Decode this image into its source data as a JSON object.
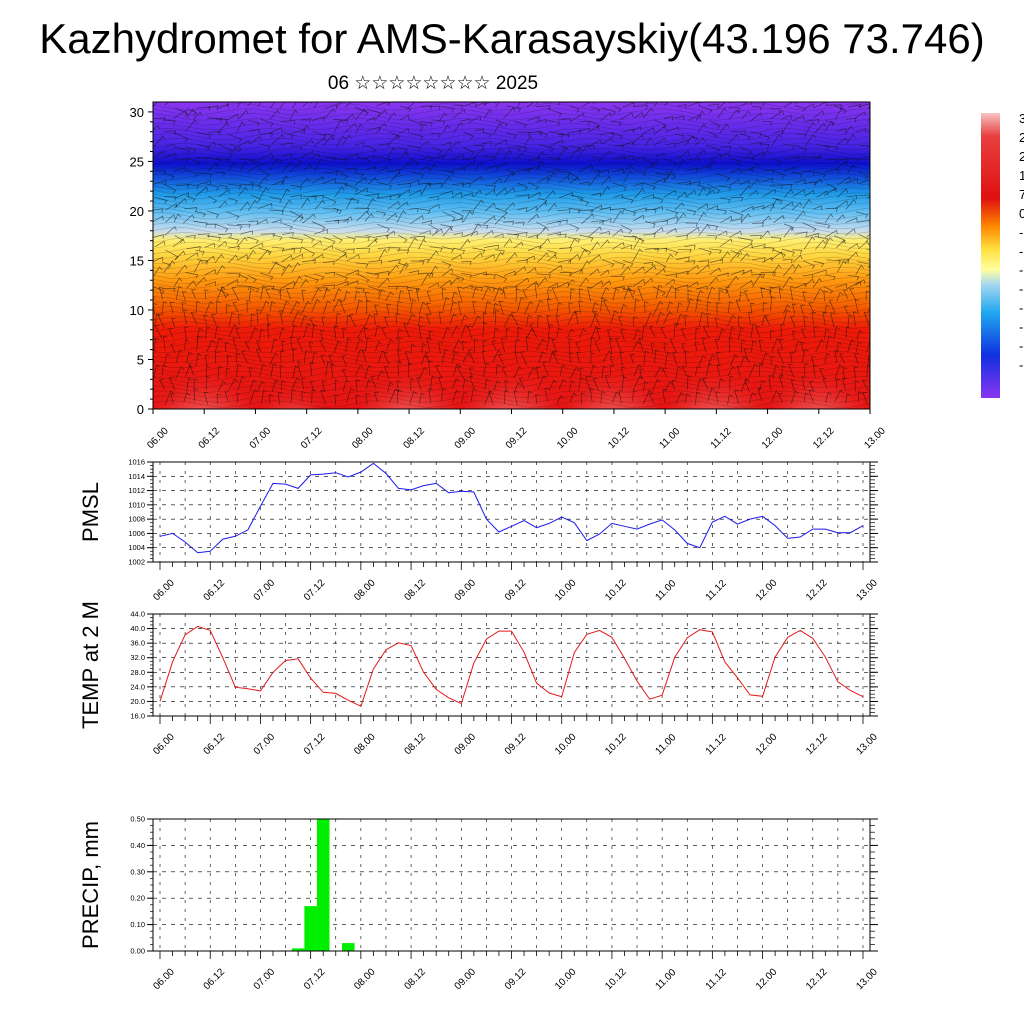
{
  "page": {
    "title": "Kazhydromet for AMS-Karasayskiy(43.196 73.746)",
    "subtitle": "06 ☆☆☆☆☆☆☆☆ 2025"
  },
  "chart_data": [
    {
      "type": "heatmap",
      "name": "vertical-section",
      "ylim": [
        0,
        31
      ],
      "yticks": [
        "0",
        "5",
        "10",
        "15",
        "20",
        "25",
        "30"
      ],
      "ytick_values": [
        0,
        5,
        10,
        15,
        20,
        25,
        30
      ],
      "xticks": [
        "06.00",
        "06.12",
        "07.00",
        "07.12",
        "08.00",
        "08.12",
        "09.00",
        "09.12",
        "10.00",
        "10.12",
        "11.00",
        "11.12",
        "12.00",
        "12.12",
        "13.00"
      ],
      "wind_barbs": true,
      "colorbar_labels": [
        "3",
        "2",
        "2",
        "1",
        "7",
        "0",
        "-",
        "-",
        "-",
        "-",
        "-",
        "-",
        "-",
        "-"
      ],
      "colors": {
        "warm": "#e01010",
        "hot": "#f4a8a8",
        "orange": "#ff8c00",
        "yellow": "#ffe040",
        "lightblue": "#9ad0f0",
        "cyan": "#20a8f0",
        "blue": "#1010e0",
        "violet": "#8a2be2"
      }
    },
    {
      "type": "line",
      "name": "pmsl",
      "ylabel": "PMSL",
      "ylim": [
        1002,
        1016
      ],
      "yticks": [
        "1002",
        "1004",
        "1006",
        "1008",
        "1010",
        "1012",
        "1014",
        "1016"
      ],
      "ytick_values": [
        1002,
        1004,
        1006,
        1008,
        1010,
        1012,
        1014,
        1016
      ],
      "xticks": [
        "06.00",
        "06.12",
        "07.00",
        "07.12",
        "08.00",
        "08.12",
        "09.00",
        "09.12",
        "10.00",
        "10.12",
        "11.00",
        "11.12",
        "12.00",
        "12.12",
        "13.00"
      ],
      "x": [
        0,
        3,
        6,
        9,
        12,
        15,
        18,
        21,
        24,
        27,
        30,
        33,
        36,
        39,
        42,
        45,
        48,
        51,
        54,
        57,
        60,
        63,
        66,
        69,
        72,
        75,
        78,
        81,
        84,
        87,
        90,
        93,
        96,
        99,
        102,
        105,
        108,
        111,
        114,
        117,
        120,
        123,
        126,
        129,
        132,
        135,
        138,
        141,
        144,
        147,
        150,
        153,
        156,
        159,
        162,
        165,
        168
      ],
      "values": [
        1005.6,
        1006,
        1004.8,
        1003.3,
        1003.5,
        1005.2,
        1005.6,
        1006.5,
        1009.8,
        1013,
        1012.9,
        1012.3,
        1014.2,
        1014.3,
        1014.5,
        1013.9,
        1014.6,
        1015.8,
        1014.4,
        1012.3,
        1012.1,
        1012.7,
        1013,
        1011.7,
        1011.9,
        1011.8,
        1008,
        1006.2,
        1007,
        1007.8,
        1006.8,
        1007.4,
        1008.3,
        1007.5,
        1005,
        1005.9,
        1007.4,
        1007,
        1006.6,
        1007.3,
        1007.9,
        1006.5,
        1004.6,
        1004,
        1007.6,
        1008.4,
        1007.3,
        1008,
        1008.4,
        1007.1,
        1005.3,
        1005.5,
        1006.6,
        1006.6,
        1006.1,
        1006.1,
        1007.1
      ],
      "color": "#1a1aee"
    },
    {
      "type": "line",
      "name": "temp",
      "ylabel": "TEMP at 2 M",
      "ylim": [
        16,
        44
      ],
      "yticks": [
        "16.0",
        "20.0",
        "24.0",
        "28.0",
        "32.0",
        "36.0",
        "40.0",
        "44.0"
      ],
      "ytick_values": [
        16,
        20,
        24,
        28,
        32,
        36,
        40,
        44
      ],
      "xticks": [
        "06.00",
        "06.12",
        "07.00",
        "07.12",
        "08.00",
        "08.12",
        "09.00",
        "09.12",
        "10.00",
        "10.12",
        "11.00",
        "11.12",
        "12.00",
        "12.12",
        "13.00"
      ],
      "x": [
        0,
        3,
        6,
        9,
        12,
        15,
        18,
        21,
        24,
        27,
        30,
        33,
        36,
        39,
        42,
        45,
        48,
        51,
        54,
        57,
        60,
        63,
        66,
        69,
        72,
        75,
        78,
        81,
        84,
        87,
        90,
        93,
        96,
        99,
        102,
        105,
        108,
        111,
        114,
        117,
        120,
        123,
        126,
        129,
        132,
        135,
        138,
        141,
        144,
        147,
        150,
        153,
        156,
        159,
        162,
        165,
        168
      ],
      "values": [
        20,
        30.9,
        38.3,
        40.6,
        39.5,
        32,
        23.9,
        23.5,
        22.9,
        28,
        31.2,
        31.7,
        26.4,
        22.5,
        22.2,
        20.3,
        18.7,
        28.9,
        34.2,
        36.1,
        35.3,
        28,
        23.3,
        21,
        19.4,
        30.5,
        37.1,
        39.3,
        39.3,
        33.5,
        25,
        22.3,
        21.3,
        33.4,
        38.4,
        39.5,
        37.6,
        31.8,
        25.6,
        20.6,
        21.7,
        32.1,
        37.5,
        39.7,
        39.1,
        30.8,
        26.5,
        21.8,
        21.4,
        32.2,
        37.6,
        39.5,
        37.3,
        32.2,
        25.4,
        23,
        21.3
      ],
      "color": "#e01a1a"
    },
    {
      "type": "bar",
      "name": "precip",
      "ylabel": "PRECIP, mm",
      "ylim": [
        0,
        0.5
      ],
      "yticks": [
        "0.00",
        "0.10",
        "0.20",
        "0.30",
        "0.40",
        "0.50"
      ],
      "ytick_values": [
        0,
        0.1,
        0.2,
        0.3,
        0.4,
        0.5
      ],
      "xticks": [
        "06.00",
        "06.12",
        "07.00",
        "07.12",
        "08.00",
        "08.12",
        "09.00",
        "09.12",
        "10.00",
        "10.12",
        "11.00",
        "11.12",
        "12.00",
        "12.12",
        "13.00"
      ],
      "x": [
        33,
        36,
        39,
        45
      ],
      "values": [
        0.01,
        0.17,
        0.5,
        0.03
      ],
      "color": "#00ee00"
    }
  ]
}
